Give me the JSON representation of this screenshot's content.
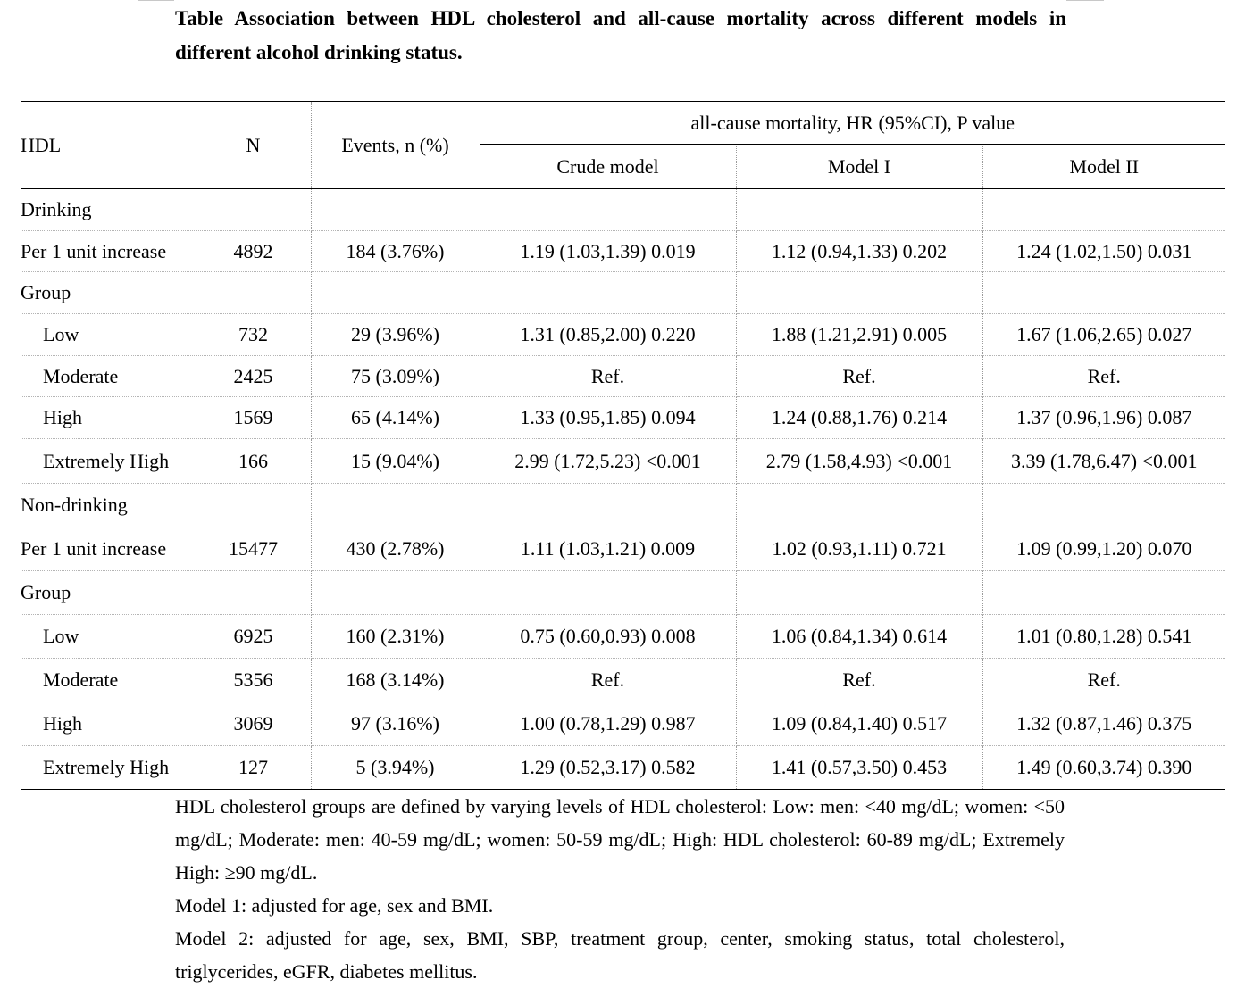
{
  "title": "Table Association between HDL cholesterol and all-cause mortality across different models in different alcohol drinking status.",
  "columns": {
    "hdl": "HDL",
    "n": "N",
    "events": "Events, n (%)",
    "group_header": "all-cause mortality, HR (95%CI), P value",
    "crude": "Crude model",
    "model1": "Model I",
    "model2": "Model II"
  },
  "rows": [
    {
      "type": "section",
      "label": "Drinking"
    },
    {
      "type": "data",
      "indent": false,
      "label": "Per 1 unit increase",
      "n": "4892",
      "events": "184 (3.76%)",
      "crude": "1.19 (1.03,1.39) 0.019",
      "model1": "1.12 (0.94,1.33) 0.202",
      "model2": "1.24 (1.02,1.50) 0.031"
    },
    {
      "type": "section",
      "label": "Group"
    },
    {
      "type": "data",
      "indent": true,
      "label": "Low",
      "n": "732",
      "events": "29 (3.96%)",
      "crude": "1.31 (0.85,2.00) 0.220",
      "model1": "1.88 (1.21,2.91) 0.005",
      "model2": "1.67 (1.06,2.65) 0.027"
    },
    {
      "type": "data",
      "indent": true,
      "label": "Moderate",
      "n": "2425",
      "events": "75 (3.09%)",
      "crude": "Ref.",
      "model1": "Ref.",
      "model2": "Ref."
    },
    {
      "type": "data",
      "indent": true,
      "label": "High",
      "n": "1569",
      "events": "65 (4.14%)",
      "crude": "1.33 (0.95,1.85) 0.094",
      "model1": "1.24 (0.88,1.76) 0.214",
      "model2": "1.37 (0.96,1.96) 0.087"
    },
    {
      "type": "data",
      "indent": true,
      "label": "Extremely High",
      "n": "166",
      "events": "15 (9.04%)",
      "crude": "2.99 (1.72,5.23) <0.001",
      "model1": "2.79 (1.58,4.93)  <0.001",
      "model2": "3.39 (1.78,6.47) <0.001"
    },
    {
      "type": "section",
      "label": "Non-drinking"
    },
    {
      "type": "data",
      "indent": false,
      "label": "Per 1 unit increase",
      "n": "15477",
      "events": "430 (2.78%)",
      "crude": "1.11 (1.03,1.21) 0.009",
      "model1": "1.02 (0.93,1.11) 0.721",
      "model2": "1.09 (0.99,1.20) 0.070"
    },
    {
      "type": "section",
      "label": "Group"
    },
    {
      "type": "data",
      "indent": true,
      "label": "Low",
      "n": "6925",
      "events": "160 (2.31%)",
      "crude": "0.75 (0.60,0.93) 0.008",
      "model1": "1.06 (0.84,1.34) 0.614",
      "model2": "1.01 (0.80,1.28) 0.541"
    },
    {
      "type": "data",
      "indent": true,
      "label": "Moderate",
      "n": "5356",
      "events": "168 (3.14%)",
      "crude": "Ref.",
      "model1": "Ref.",
      "model2": "Ref."
    },
    {
      "type": "data",
      "indent": true,
      "label": "High",
      "n": "3069",
      "events": "97 (3.16%)",
      "crude": "1.00 (0.78,1.29) 0.987",
      "model1": "1.09 (0.84,1.40) 0.517",
      "model2": "1.32 (0.87,1.46) 0.375"
    },
    {
      "type": "data",
      "indent": true,
      "label": "Extremely High",
      "n": "127",
      "events": "5 (3.94%)",
      "crude": "1.29 (0.52,3.17) 0.582",
      "model1": "1.41 (0.57,3.50) 0.453",
      "model2": "1.49 (0.60,3.74) 0.390"
    }
  ],
  "notes": [
    "HDL cholesterol groups are defined by varying levels of HDL cholesterol: Low: men: <40 mg/dL; women: <50 mg/dL; Moderate: men: 40-59 mg/dL; women: 50-59 mg/dL; High: HDL cholesterol: 60-89 mg/dL; Extremely High: ≥90 mg/dL.",
    "Model 1: adjusted for age, sex and BMI.",
    "Model 2: adjusted for age, sex, BMI, SBP, treatment group, center, smoking status, total cholesterol, triglycerides, eGFR, diabetes mellitus."
  ]
}
